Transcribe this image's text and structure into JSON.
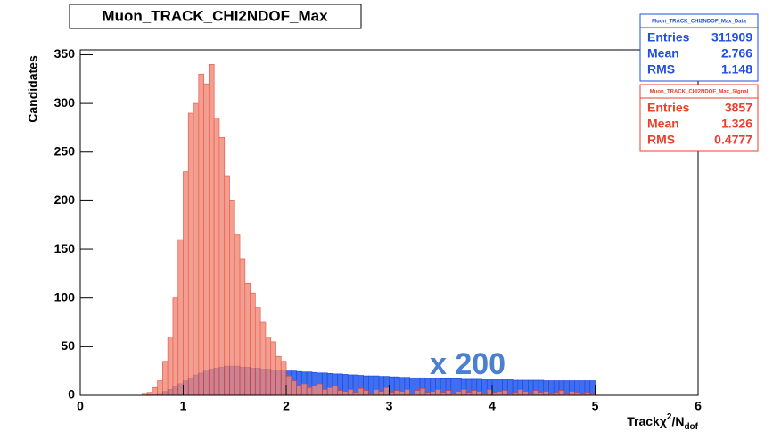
{
  "chart_data": {
    "type": "histogram",
    "title": "Muon_TRACK_CHI2NDOF_Max",
    "ylabel": "Candidates",
    "xlabel": {
      "main": "Trackχ",
      "sup": "2",
      "mid": "/N",
      "sub": "dof"
    },
    "annotation": "x 200",
    "xlim": [
      0,
      6
    ],
    "ylim": [
      0,
      355
    ],
    "xticks": [
      0,
      1,
      2,
      3,
      4,
      5,
      6
    ],
    "yticks": [
      0,
      50,
      100,
      150,
      200,
      250,
      300,
      350
    ],
    "bins": [
      0.5,
      0.55,
      0.6,
      0.65,
      0.7,
      0.75,
      0.8,
      0.85,
      0.9,
      0.95,
      1.0,
      1.05,
      1.1,
      1.15,
      1.2,
      1.25,
      1.3,
      1.35,
      1.4,
      1.45,
      1.5,
      1.55,
      1.6,
      1.65,
      1.7,
      1.75,
      1.8,
      1.85,
      1.9,
      1.95,
      2.0,
      2.05,
      2.1,
      2.15,
      2.2,
      2.25,
      2.3,
      2.35,
      2.4,
      2.45,
      2.5,
      2.55,
      2.6,
      2.65,
      2.7,
      2.75,
      2.8,
      2.85,
      2.9,
      2.95,
      3.0,
      3.05,
      3.1,
      3.15,
      3.2,
      3.25,
      3.3,
      3.35,
      3.4,
      3.45,
      3.5,
      3.55,
      3.6,
      3.65,
      3.7,
      3.75,
      3.8,
      3.85,
      3.9,
      3.95,
      4.0,
      4.05,
      4.1,
      4.15,
      4.2,
      4.25,
      4.3,
      4.35,
      4.4,
      4.45,
      4.5,
      4.55,
      4.6,
      4.65,
      4.7,
      4.75,
      4.8,
      4.85,
      4.9,
      4.95,
      5.0
    ],
    "series": [
      {
        "name": "Muon_TRACK_CHI2NDOF_Max_Data",
        "color": "#1f4fe0",
        "fill": "#3f6ff0",
        "stats": [
          {
            "label": "Entries",
            "value": "311909"
          },
          {
            "label": "Mean",
            "value": "2.766"
          },
          {
            "label": "RMS",
            "value": "1.148"
          }
        ],
        "values": [
          0,
          0,
          0,
          0.5,
          1,
          2,
          4,
          6,
          9,
          12,
          15,
          18,
          21,
          23,
          25,
          27,
          28,
          29,
          30,
          30,
          30,
          29,
          29,
          28,
          28,
          27,
          27,
          26,
          26,
          25,
          25,
          25,
          24.5,
          24,
          24,
          23.5,
          23,
          23,
          22.5,
          22,
          22,
          21.5,
          21,
          21,
          20.5,
          20,
          20,
          20,
          19.5,
          19.5,
          19,
          19,
          18.5,
          18.5,
          18,
          18,
          18,
          17.5,
          17.5,
          17.5,
          17,
          17,
          17,
          17,
          16.5,
          16.5,
          16.5,
          16.5,
          16,
          16,
          16,
          16,
          16,
          16,
          15.5,
          15.5,
          15.5,
          15.5,
          15.5,
          15.5,
          15,
          15,
          15,
          15,
          15,
          15,
          15,
          15,
          15,
          15
        ]
      },
      {
        "name": "Muon_TRACK_CHI2NDOF_Max_Signal",
        "color": "#e8402a",
        "fill": "#f08878",
        "stats": [
          {
            "label": "Entries",
            "value": "3857"
          },
          {
            "label": "Mean",
            "value": "1.326"
          },
          {
            "label": "RMS",
            "value": "0.4777"
          }
        ],
        "values": [
          0,
          0,
          2,
          3,
          8,
          15,
          35,
          60,
          100,
          160,
          230,
          290,
          300,
          330,
          320,
          340,
          285,
          265,
          225,
          200,
          165,
          140,
          115,
          105,
          90,
          75,
          60,
          55,
          40,
          35,
          20,
          15,
          10,
          12,
          8,
          10,
          12,
          6,
          8,
          10,
          5,
          4,
          6,
          3,
          7,
          5,
          2,
          6,
          4,
          8,
          3,
          5,
          4,
          6,
          2,
          5,
          7,
          3,
          4,
          6,
          3,
          5,
          2,
          4,
          6,
          3,
          5,
          4,
          2,
          6,
          3,
          4,
          5,
          2,
          3,
          6,
          4,
          2,
          5,
          3,
          4,
          2,
          3,
          5,
          2,
          4,
          3,
          2,
          3,
          2
        ]
      }
    ]
  }
}
